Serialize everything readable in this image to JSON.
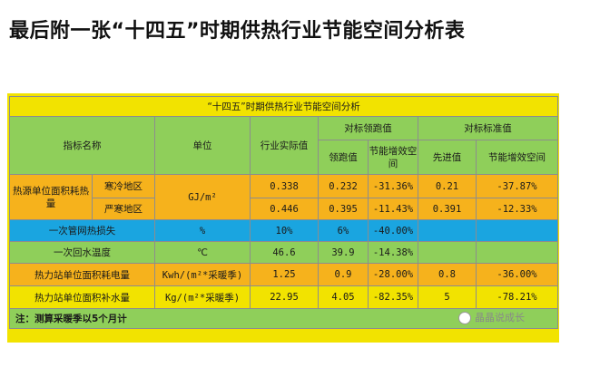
{
  "heading": "最后附一张“十四五”时期供热行业节能空间分析表",
  "table": {
    "title": "“十四五”时期供热行业节能空间分析",
    "headers": {
      "indicator": "指标名称",
      "unit": "单位",
      "actual": "行业实际值",
      "leading_group": "对标领跑值",
      "leading_value": "领跑值",
      "leading_potential": "节能增效空间",
      "benchmark_group": "对标标准值",
      "advanced_value": "先进值",
      "benchmark_potential": "节能增效空间"
    },
    "heat_source": {
      "name": "热源单位面积耗热量",
      "unit": "GJ/m²",
      "rows": [
        {
          "region": "寒冷地区",
          "actual": "0.338",
          "leading": "0.232",
          "leading_gap": "-31.36%",
          "advanced": "0.21",
          "advanced_gap": "-37.87%"
        },
        {
          "region": "严寒地区",
          "actual": "0.446",
          "leading": "0.395",
          "leading_gap": "-11.43%",
          "advanced": "0.391",
          "advanced_gap": "-12.33%"
        }
      ]
    },
    "rows": [
      {
        "name": "一次管网热损失",
        "unit": "%",
        "actual": "10%",
        "leading": "6%",
        "leading_gap": "-40.00%",
        "advanced": "",
        "advanced_gap": ""
      },
      {
        "name": "一次回水温度",
        "unit": "℃",
        "actual": "46.6",
        "leading": "39.9",
        "leading_gap": "-14.38%",
        "advanced": "",
        "advanced_gap": ""
      },
      {
        "name": "热力站单位面积耗电量",
        "unit": "Kwh/(m²*采暖季)",
        "actual": "1.25",
        "leading": "0.9",
        "leading_gap": "-28.00%",
        "advanced": "0.8",
        "advanced_gap": "-36.00%"
      },
      {
        "name": "热力站单位面积补水量",
        "unit": "Kg/(m²*采暖季)",
        "actual": "22.95",
        "leading": "4.05",
        "leading_gap": "-82.35%",
        "advanced": "5",
        "advanced_gap": "-78.21%"
      }
    ],
    "note": "注：测算采暖季以5个月计"
  },
  "watermark": "晶晶说成长",
  "colors": {
    "yellow": "#f2e300",
    "green": "#8fcf5a",
    "orange": "#f6b21c",
    "blue": "#1aa5e0"
  }
}
